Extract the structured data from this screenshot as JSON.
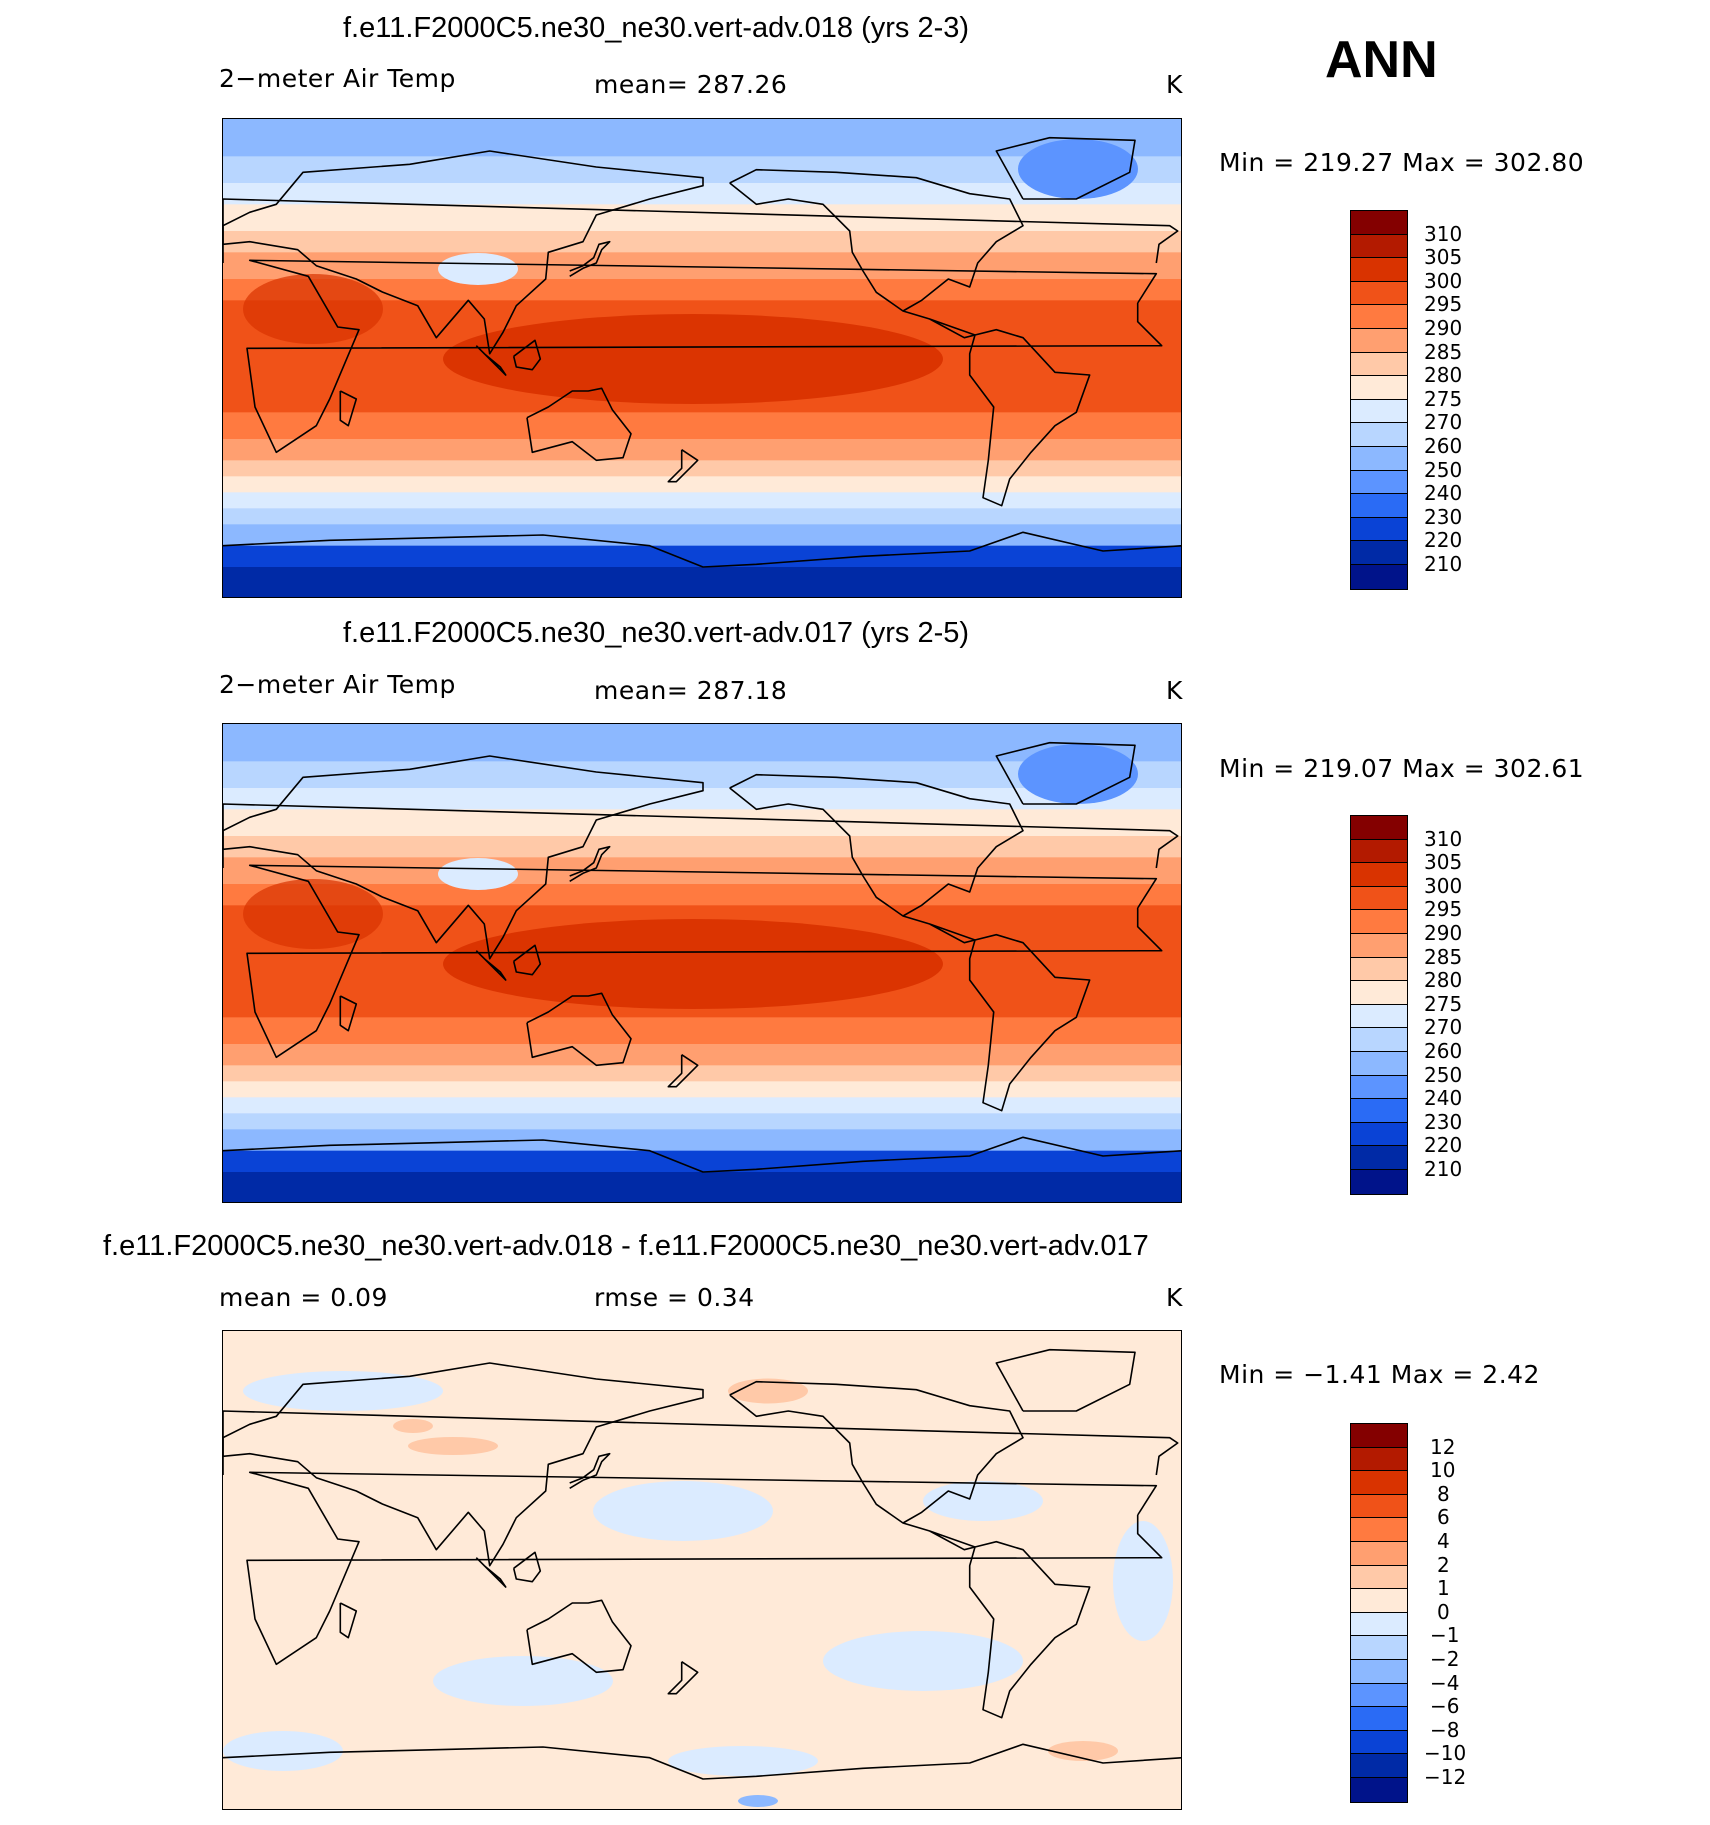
{
  "season": "ANN",
  "chart_data": [
    {
      "type": "heatmap",
      "title": "f.e11.F2000C5.ne30_ne30.vert-adv.018 (yrs 2-3)",
      "variable": "2−meter Air Temp",
      "stat_left": "",
      "stat_mid": "mean=  287.26",
      "units": "K",
      "min_label": "Min",
      "min": "219.27",
      "max_label": "Max",
      "max": "302.80",
      "min_max_text": "Min  =  219.27  Max  =  302.80",
      "levels": [
        "310",
        "305",
        "300",
        "295",
        "290",
        "285",
        "280",
        "275",
        "270",
        "260",
        "250",
        "240",
        "230",
        "220",
        "210"
      ],
      "colors": [
        "#840000",
        "#b31a00",
        "#d93300",
        "#f05218",
        "#ff7a40",
        "#ff9f70",
        "#ffc9a8",
        "#ffead8",
        "#dbebff",
        "#b8d6ff",
        "#8cb8ff",
        "#5c94ff",
        "#2a6bf5",
        "#0a43d6",
        "#002aa6",
        "#00138a"
      ]
    },
    {
      "type": "heatmap",
      "title": "f.e11.F2000C5.ne30_ne30.vert-adv.017 (yrs 2-5)",
      "variable": "2−meter Air Temp",
      "stat_left": "",
      "stat_mid": "mean=  287.18",
      "units": "K",
      "min_max_text": "Min  =  219.07  Max  =  302.61",
      "levels": [
        "310",
        "305",
        "300",
        "295",
        "290",
        "285",
        "280",
        "275",
        "270",
        "260",
        "250",
        "240",
        "230",
        "220",
        "210"
      ],
      "colors": [
        "#840000",
        "#b31a00",
        "#d93300",
        "#f05218",
        "#ff7a40",
        "#ff9f70",
        "#ffc9a8",
        "#ffead8",
        "#dbebff",
        "#b8d6ff",
        "#8cb8ff",
        "#5c94ff",
        "#2a6bf5",
        "#0a43d6",
        "#002aa6",
        "#00138a"
      ]
    },
    {
      "type": "heatmap",
      "title": "f.e11.F2000C5.ne30_ne30.vert-adv.018 - f.e11.F2000C5.ne30_ne30.vert-adv.017",
      "variable": "",
      "stat_left": "mean =      0.09",
      "stat_mid": "rmse =      0.34",
      "units": "K",
      "min_max_text": "Min  =    −1.41  Max  =      2.42",
      "levels": [
        "12",
        "10",
        "8",
        "6",
        "4",
        "2",
        "1",
        "0",
        "−1",
        "−2",
        "−4",
        "−6",
        "−8",
        "−10",
        "−12"
      ],
      "colors": [
        "#840000",
        "#b31a00",
        "#d93300",
        "#f05218",
        "#ff7a40",
        "#ff9f70",
        "#ffc9a8",
        "#ffead8",
        "#dbebff",
        "#b8d6ff",
        "#8cb8ff",
        "#5c94ff",
        "#2a6bf5",
        "#0a43d6",
        "#002aa6",
        "#00138a"
      ]
    }
  ]
}
